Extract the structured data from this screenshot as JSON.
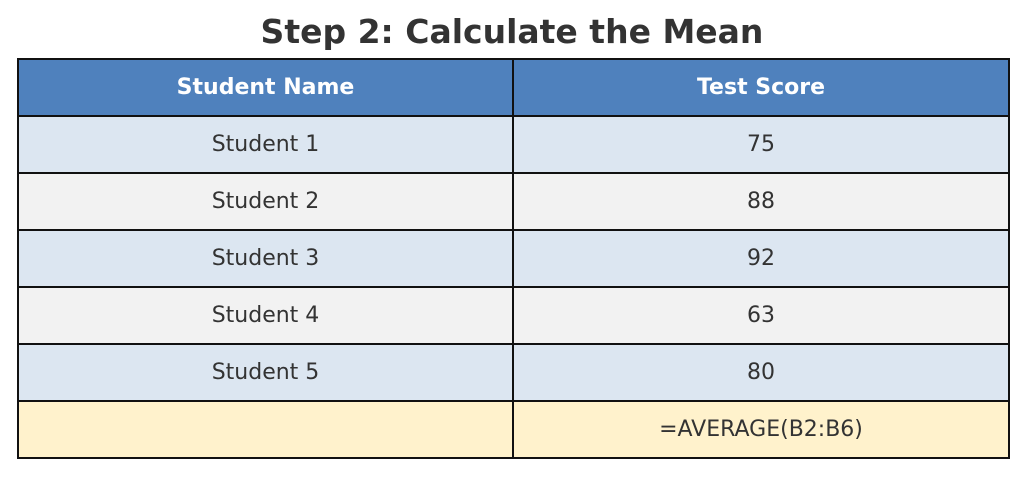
{
  "title": "Step 2: Calculate the Mean",
  "table": {
    "headers": [
      "Student Name",
      "Test Score"
    ],
    "rows": [
      [
        "Student 1",
        "75"
      ],
      [
        "Student 2",
        "88"
      ],
      [
        "Student 3",
        "92"
      ],
      [
        "Student 4",
        "63"
      ],
      [
        "Student 5",
        "80"
      ]
    ],
    "formula_row": [
      "",
      "=AVERAGE(B2:B6)"
    ]
  },
  "colors": {
    "header_bg": "#4f81bd",
    "row_alt_blue": "#dce6f1",
    "row_alt_gray": "#f2f2f2",
    "formula_bg": "#fff2cc",
    "border": "#111111"
  }
}
